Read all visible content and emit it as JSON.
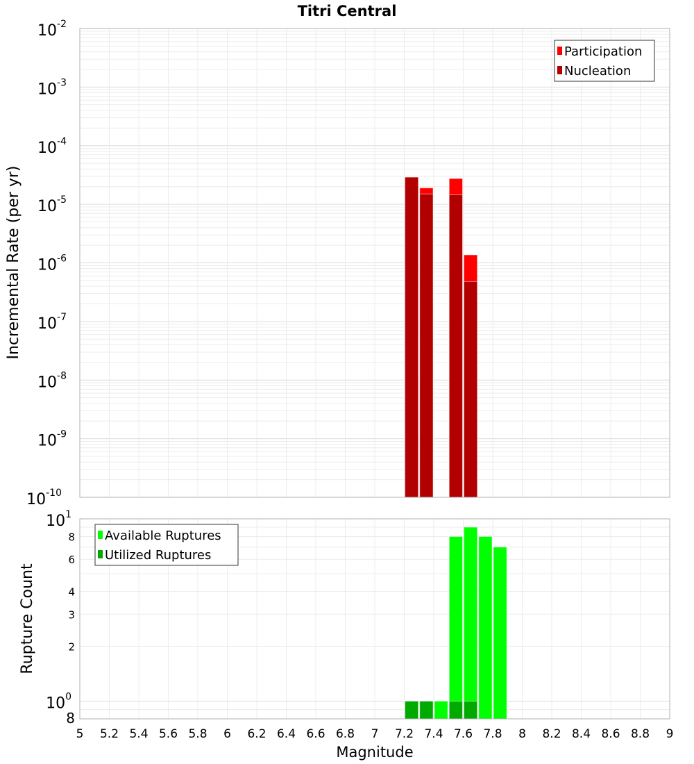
{
  "chart_data": [
    {
      "type": "bar",
      "title": "Titri Central",
      "xlabel": "Magnitude",
      "ylabel": "Incremental Rate (per yr)",
      "yscale": "log",
      "xlim": [
        5,
        9
      ],
      "ylim": [
        1e-10,
        0.01
      ],
      "grid": true,
      "legend_placement": "top-right",
      "bin_width": 0.1,
      "y_ticks": [
        {
          "base": "10",
          "exp": "-2"
        },
        {
          "base": "10",
          "exp": "-3"
        },
        {
          "base": "10",
          "exp": "-4"
        },
        {
          "base": "10",
          "exp": "-5"
        },
        {
          "base": "10",
          "exp": "-6"
        },
        {
          "base": "10",
          "exp": "-7"
        },
        {
          "base": "10",
          "exp": "-8"
        },
        {
          "base": "10",
          "exp": "-9"
        },
        {
          "base": "10",
          "exp": "-10"
        }
      ],
      "series": [
        {
          "name": "Participation",
          "color": "#ff0000",
          "x": [
            7.25,
            7.35,
            7.55,
            7.65
          ],
          "values": [
            2.9e-05,
            1.9e-05,
            2.75e-05,
            1.37e-06
          ]
        },
        {
          "name": "Nucleation",
          "color": "#b20000",
          "x": [
            7.25,
            7.35,
            7.55,
            7.65
          ],
          "values": [
            2.9e-05,
            1.5e-05,
            1.45e-05,
            4.8e-07
          ]
        }
      ]
    },
    {
      "type": "bar",
      "xlabel": "Magnitude",
      "ylabel": "Rupture Count",
      "yscale": "log",
      "xlim": [
        5,
        9
      ],
      "ylim": [
        0.8,
        10
      ],
      "grid": true,
      "legend_placement": "top-left",
      "bin_width": 0.1,
      "y_ticks": [
        {
          "v": 10,
          "base": "10",
          "exp": "1"
        },
        {
          "v": 8,
          "base": "8",
          "exp": ""
        },
        {
          "v": 6,
          "base": "6",
          "exp": ""
        },
        {
          "v": 4,
          "base": "4",
          "exp": ""
        },
        {
          "v": 3,
          "base": "3",
          "exp": ""
        },
        {
          "v": 2,
          "base": "2",
          "exp": ""
        },
        {
          "v": 1,
          "base": "10",
          "exp": "0"
        },
        {
          "v": 0.8,
          "base": "8",
          "exp": ""
        }
      ],
      "x_ticks": [
        "5",
        "5.2",
        "5.4",
        "5.6",
        "5.8",
        "6",
        "6.2",
        "6.4",
        "6.6",
        "6.8",
        "7",
        "7.2",
        "7.4",
        "7.6",
        "7.8",
        "8",
        "8.2",
        "8.4",
        "8.6",
        "8.8",
        "9"
      ],
      "series": [
        {
          "name": "Available Ruptures",
          "color": "#00ff00",
          "x": [
            7.25,
            7.35,
            7.45,
            7.55,
            7.65,
            7.75,
            7.85
          ],
          "values": [
            1,
            1,
            1,
            8,
            9,
            8,
            7
          ]
        },
        {
          "name": "Utilized Ruptures",
          "color": "#00aa00",
          "x": [
            7.25,
            7.35,
            7.55,
            7.65
          ],
          "values": [
            1,
            1,
            1,
            1
          ]
        }
      ]
    }
  ]
}
